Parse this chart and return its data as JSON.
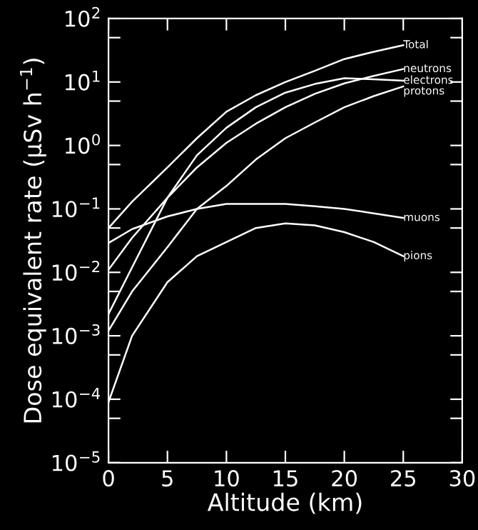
{
  "chart_data": {
    "type": "line",
    "xlabel": "Altitude (km)",
    "ylabel": "Dose equivalent rate (μSv h$^{−1}$)",
    "log": "y",
    "xlim": [
      0,
      30
    ],
    "xticks": [
      0,
      5,
      10,
      15,
      20,
      25,
      30
    ],
    "ylim": [
      1e-05,
      100
    ],
    "yticks": [
      {
        "value": 1e-05,
        "label": "10$^{−5}$"
      },
      {
        "value": 5e-05,
        "label": null
      },
      {
        "value": 0.0001,
        "label": "10$^{−4}$"
      },
      {
        "value": 0.0005,
        "label": null
      },
      {
        "value": 0.001,
        "label": "10$^{−3}$"
      },
      {
        "value": 0.005,
        "label": null
      },
      {
        "value": 0.01,
        "label": "10$^{−2}$"
      },
      {
        "value": 0.05,
        "label": null
      },
      {
        "value": 0.1,
        "label": "10$^{−1}$"
      },
      {
        "value": 0.5,
        "label": null
      },
      {
        "value": 1,
        "label": "10$^{0}$"
      },
      {
        "value": 5,
        "label": null
      },
      {
        "value": 10,
        "label": "10$^{1}$"
      },
      {
        "value": 50,
        "label": null
      },
      {
        "value": 100,
        "label": "10$^{2}$"
      }
    ],
    "grid": false,
    "legend": "right",
    "marker": "none",
    "line_style": "solid",
    "x": [
      0,
      2,
      5,
      7.5,
      10,
      12.5,
      15,
      17.5,
      20,
      22.5,
      25
    ],
    "series": [
      {
        "name": "Total",
        "color": "#ffffff",
        "values": [
          0.05,
          0.13,
          0.45,
          1.3,
          3.4,
          6.2,
          10,
          15,
          23,
          30,
          38
        ]
      },
      {
        "name": "neutrons",
        "color": "#ffffff",
        "values": [
          0.011,
          0.035,
          0.15,
          0.45,
          1.1,
          2.2,
          4,
          6.5,
          9.5,
          12.5,
          16
        ]
      },
      {
        "name": "electrons",
        "color": "#ffffff",
        "values": [
          0.0022,
          0.012,
          0.15,
          0.7,
          1.9,
          4,
          6.8,
          9.3,
          11.5,
          11,
          10.5
        ]
      },
      {
        "name": "protons",
        "color": "#ffffff",
        "values": [
          0.0012,
          0.005,
          0.025,
          0.1,
          0.23,
          0.6,
          1.3,
          2.3,
          4,
          6,
          8.5
        ]
      },
      {
        "name": "muons",
        "color": "#ffffff",
        "values": [
          0.029,
          0.048,
          0.076,
          0.1,
          0.12,
          0.12,
          0.12,
          0.11,
          0.1,
          0.085,
          0.072
        ]
      },
      {
        "name": "pions",
        "color": "#ffffff",
        "values": [
          9e-05,
          0.001,
          0.007,
          0.018,
          0.03,
          0.05,
          0.059,
          0.055,
          0.043,
          0.03,
          0.018
        ]
      }
    ]
  }
}
